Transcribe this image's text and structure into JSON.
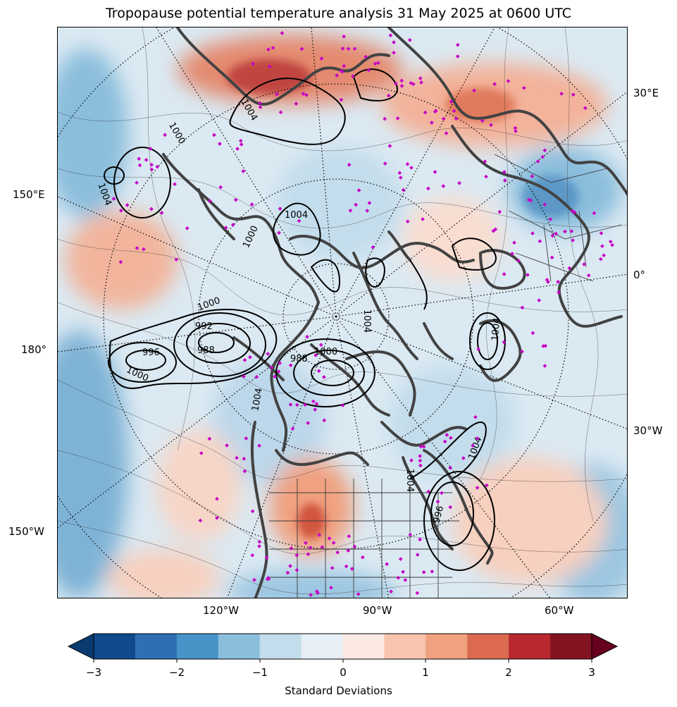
{
  "title": "Tropopause potential temperature analysis 31 May 2025 at 0600 UTC",
  "map": {
    "longitude_labels_left": [
      "150°E",
      "180°",
      "150°W"
    ],
    "longitude_labels_right": [
      "30°E",
      "0°",
      "30°W"
    ],
    "longitude_labels_bottom": [
      "120°W",
      "90°W",
      "60°W"
    ],
    "pressure_contour_labels": [
      "1004",
      "1000",
      "1004",
      "1000",
      "1004",
      "992",
      "988",
      "996",
      "1000",
      "1000",
      "988",
      "1004",
      "1004",
      "1004",
      "1004",
      "1000",
      "1004",
      "996"
    ],
    "colors": {
      "neg_3": "#0a3b6e",
      "neg_25": "#10498c",
      "neg_2": "#2e6fb3",
      "neg_15": "#4693c8",
      "neg_1": "#8bbedd",
      "neg_05": "#c3ddec",
      "zero_neg": "#e6eff5",
      "zero_pos": "#fbe9e2",
      "pos_05": "#f7c4ad",
      "pos_1": "#f0a17f",
      "pos_15": "#db6a51",
      "pos_2": "#b8282e",
      "pos_25": "#841322",
      "pos_3": "#67001f",
      "coastline": "#424242",
      "station_marker": "#c800c8",
      "isobar": "#000000"
    }
  },
  "colorbar": {
    "label": "Standard Deviations",
    "ticks": [
      "−3",
      "−2",
      "−1",
      "0",
      "1",
      "2",
      "3"
    ]
  }
}
